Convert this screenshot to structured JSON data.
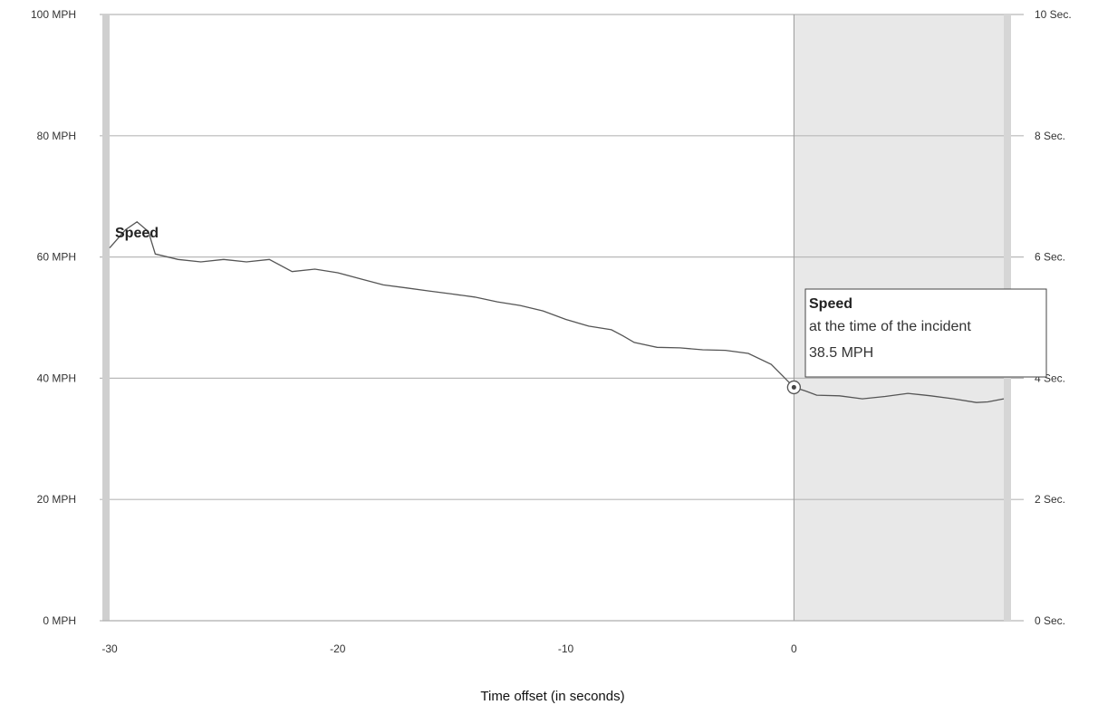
{
  "chart_data": {
    "type": "line",
    "xlabel": "Time offset (in seconds)",
    "xlim": [
      -30,
      9.2
    ],
    "xticks": [
      {
        "value": -30,
        "label": "-30"
      },
      {
        "value": -20,
        "label": "-20"
      },
      {
        "value": -10,
        "label": "-10"
      },
      {
        "value": 0,
        "label": "0"
      }
    ],
    "ylim": [
      0,
      100
    ],
    "yticks_left": [
      {
        "value": 0,
        "label": "0 MPH"
      },
      {
        "value": 20,
        "label": "20 MPH"
      },
      {
        "value": 40,
        "label": "40 MPH"
      },
      {
        "value": 60,
        "label": "60 MPH"
      },
      {
        "value": 80,
        "label": "80 MPH"
      },
      {
        "value": 100,
        "label": "100 MPH"
      }
    ],
    "yticks_right": [
      {
        "value": 0,
        "label": "0 Sec."
      },
      {
        "value": 20,
        "label": "2 Sec."
      },
      {
        "value": 40,
        "label": "4 Sec."
      },
      {
        "value": 60,
        "label": "6 Sec."
      },
      {
        "value": 80,
        "label": "8 Sec."
      },
      {
        "value": 100,
        "label": "10 Sec."
      }
    ],
    "grid": true,
    "shaded_region": {
      "from": 0,
      "to": 9.2,
      "color": "#e8e8e8"
    },
    "series": [
      {
        "name": "Speed",
        "color": "#555555",
        "x": [
          -30,
          -29.3,
          -28.8,
          -28.3,
          -28,
          -27,
          -26,
          -25,
          -24,
          -23,
          -22,
          -21,
          -20,
          -19,
          -18,
          -17,
          -16,
          -15,
          -14,
          -13,
          -12,
          -11,
          -10,
          -9,
          -8,
          -7.5,
          -7,
          -6,
          -5,
          -4,
          -3,
          -2,
          -1,
          -0.5,
          0,
          0.5,
          1,
          2,
          3,
          4,
          5,
          6,
          7,
          8,
          8.5,
          9.2
        ],
        "y": [
          61.5,
          64.5,
          65.8,
          64.2,
          60.5,
          59.6,
          59.2,
          59.6,
          59.2,
          59.6,
          57.6,
          58.0,
          57.4,
          56.4,
          55.4,
          54.9,
          54.4,
          53.9,
          53.4,
          52.6,
          52.0,
          51.1,
          49.7,
          48.6,
          48.0,
          47.0,
          45.9,
          45.1,
          45.0,
          44.7,
          44.6,
          44.1,
          42.3,
          40.4,
          38.5,
          37.9,
          37.2,
          37.1,
          36.6,
          37.0,
          37.5,
          37.1,
          36.6,
          36.0,
          36.1,
          36.6
        ]
      }
    ],
    "series_label": "Speed",
    "highlight": {
      "x": 0,
      "y": 38.5
    },
    "tooltip": {
      "title": "Speed",
      "line1": "at the time of the incident",
      "line2": "38.5 MPH"
    }
  }
}
